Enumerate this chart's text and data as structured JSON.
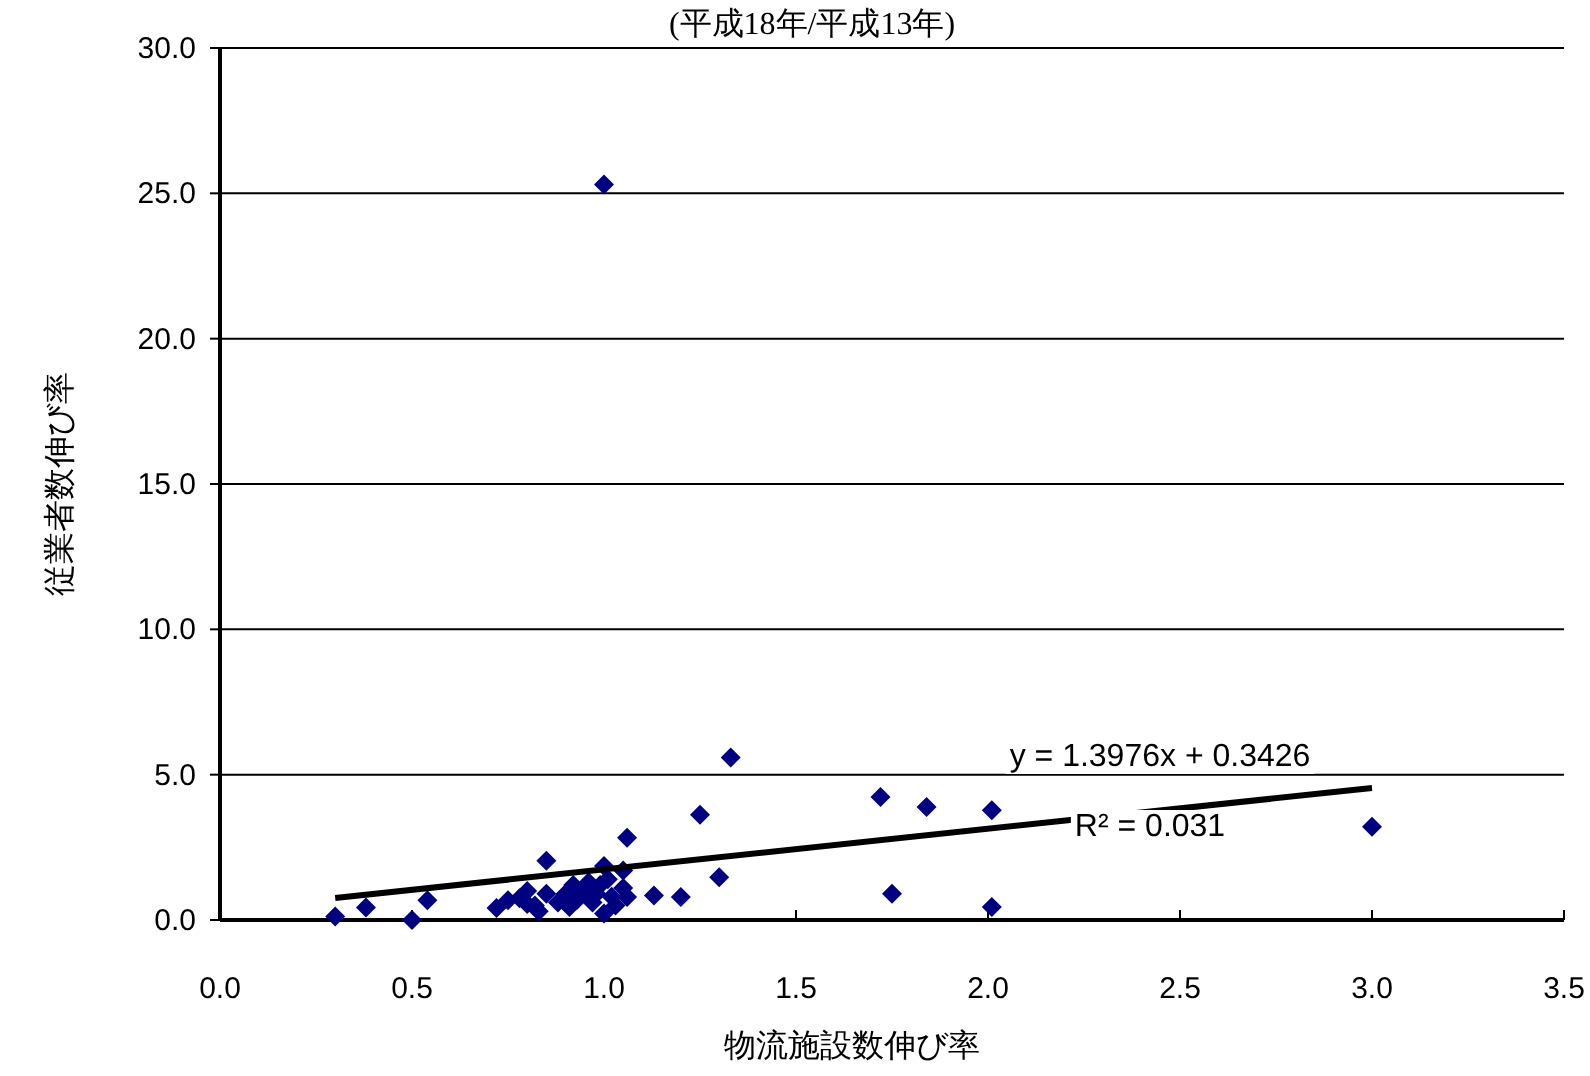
{
  "chart_data": {
    "type": "scatter",
    "title": "(平成18年/平成13年)",
    "xlabel": "物流施設数伸び率",
    "ylabel": "従業者数伸び率",
    "xlim": [
      0,
      3.5
    ],
    "xticks": [
      {
        "value": 0,
        "label": "0.0"
      },
      {
        "value": 0.5,
        "label": "0.5"
      },
      {
        "value": 1,
        "label": "1.0"
      },
      {
        "value": 1.5,
        "label": "1.5"
      },
      {
        "value": 2,
        "label": "2.0"
      },
      {
        "value": 2.5,
        "label": "2.5"
      },
      {
        "value": 3,
        "label": "3.0"
      },
      {
        "value": 3.5,
        "label": "3.5"
      }
    ],
    "ylim": [
      0,
      30
    ],
    "yticks": [
      {
        "value": 0,
        "label": "0.0"
      },
      {
        "value": 5,
        "label": "5.0"
      },
      {
        "value": 10,
        "label": "10.0"
      },
      {
        "value": 15,
        "label": "15.0"
      },
      {
        "value": 20,
        "label": "20.0"
      },
      {
        "value": 25,
        "label": "25.0"
      },
      {
        "value": 30,
        "label": "30.0"
      }
    ],
    "grid": "y",
    "marker": "diamond",
    "series": [
      {
        "type": "scatter",
        "color": "#000080",
        "x": [
          0.3,
          0.38,
          0.5,
          0.54,
          0.72,
          0.75,
          0.78,
          0.8,
          0.8,
          0.82,
          0.83,
          0.85,
          0.85,
          0.88,
          0.9,
          0.91,
          0.92,
          0.93,
          0.95,
          0.96,
          0.97,
          0.98,
          0.99,
          1.0,
          1.0,
          1.0,
          1.01,
          1.02,
          1.03,
          1.05,
          1.05,
          1.06,
          1.06,
          1.13,
          1.2,
          1.25,
          1.3,
          1.33,
          1.72,
          1.75,
          1.84,
          2.01,
          2.01,
          3.0
        ],
        "values": [
          0.12,
          0.43,
          0.0,
          0.68,
          0.41,
          0.68,
          0.75,
          1.0,
          0.55,
          0.5,
          0.3,
          0.9,
          2.04,
          0.6,
          0.9,
          0.45,
          1.2,
          0.7,
          1.0,
          1.3,
          0.6,
          0.9,
          1.2,
          1.86,
          0.22,
          25.3,
          1.4,
          0.8,
          0.5,
          1.1,
          1.7,
          2.83,
          0.79,
          0.84,
          0.79,
          3.62,
          1.47,
          5.59,
          4.23,
          0.9,
          3.89,
          3.78,
          0.45,
          3.21
        ]
      },
      {
        "type": "line",
        "color": "#000000",
        "x": [
          0.3,
          3.0
        ],
        "values": [
          0.76,
          4.54
        ],
        "marker": "none"
      }
    ],
    "annotations": [
      "y = 1.3976x + 0.3426",
      "R² = 0.031"
    ]
  }
}
